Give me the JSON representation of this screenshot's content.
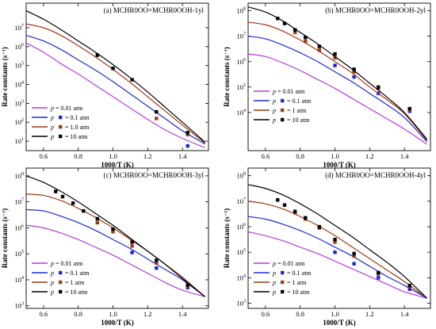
{
  "figure": {
    "colors": {
      "0.01": "#b43ce0",
      "0.1": "#1c28d6",
      "1": "#9e3a14",
      "10": "#000000"
    },
    "xlabel": "1000/T (K)",
    "ylabel": "Rate constants (s⁻¹)"
  },
  "chart_data": [
    {
      "type": "line",
      "panel": "a",
      "title": "(a) MCHR0OO=MCHR0OOH-1yl",
      "xlabel": "1000/T (K)",
      "ylabel": "Rate constants (s⁻¹)",
      "xlim": [
        0.5,
        1.55
      ],
      "ylim_exp": [
        0.5,
        8.3
      ],
      "x_ticks": [
        0.6,
        0.8,
        1.0,
        1.2,
        1.4
      ],
      "y_tick_exps": [
        1,
        2,
        3,
        4,
        5,
        6,
        7
      ],
      "legend_position": "bottom-left",
      "legend": [
        {
          "p": "p",
          "label": " = 0.01 atm",
          "key": "0.01",
          "kind": "line"
        },
        {
          "p": "p",
          "label": " = 0.1 atm",
          "key": "0.1",
          "kind": "line+square"
        },
        {
          "p": "p",
          "label": " = 1.0 atm",
          "key": "1",
          "kind": "line+square"
        },
        {
          "p": "p",
          "label": " = 10 atm",
          "key": "10",
          "kind": "line+square"
        }
      ],
      "series": [
        {
          "key": "0.01",
          "line_x": [
            0.5,
            0.6,
            0.7,
            0.8,
            0.9,
            1.0,
            1.1,
            1.2,
            1.3,
            1.4,
            1.53
          ],
          "line_log10": [
            6.2,
            5.7,
            5.1,
            4.55,
            3.95,
            3.35,
            2.75,
            2.15,
            1.6,
            1.15,
            0.65
          ],
          "points_x": [],
          "points_log10": []
        },
        {
          "key": "0.1",
          "line_x": [
            0.5,
            0.6,
            0.7,
            0.8,
            0.9,
            1.0,
            1.1,
            1.2,
            1.3,
            1.4,
            1.53
          ],
          "line_log10": [
            6.6,
            6.3,
            5.85,
            5.3,
            4.75,
            4.15,
            3.5,
            2.85,
            2.2,
            1.55,
            0.85
          ],
          "points_x": [
            1.43
          ],
          "points_log10": [
            0.75
          ]
        },
        {
          "key": "1",
          "line_x": [
            0.5,
            0.6,
            0.7,
            0.8,
            0.9,
            1.0,
            1.1,
            1.2,
            1.3,
            1.4,
            1.53
          ],
          "line_log10": [
            7.2,
            7.0,
            6.6,
            6.05,
            5.45,
            4.8,
            4.1,
            3.35,
            2.6,
            1.85,
            0.9
          ],
          "points_x": [
            1.25,
            1.43
          ],
          "points_log10": [
            2.2,
            1.35
          ]
        },
        {
          "key": "10",
          "line_x": [
            0.5,
            0.6,
            0.7,
            0.8,
            0.9,
            1.0,
            1.1,
            1.2,
            1.3,
            1.4,
            1.53
          ],
          "line_log10": [
            7.9,
            7.45,
            6.9,
            6.3,
            5.7,
            5.05,
            4.35,
            3.6,
            2.8,
            2.0,
            0.95
          ],
          "points_x": [
            0.91,
            1.0,
            1.11,
            1.25,
            1.43
          ],
          "points_log10": [
            5.55,
            4.85,
            4.25,
            2.55,
            1.45
          ]
        }
      ]
    },
    {
      "type": "line",
      "panel": "b",
      "title": "(b) MCHR0OO=MCHR0OOH-2yl",
      "xlabel": "1000/T (K)",
      "ylabel": "Rate constants (s⁻¹)",
      "xlim": [
        0.5,
        1.55
      ],
      "ylim_exp": [
        2.5,
        8.3
      ],
      "x_ticks": [
        0.6,
        0.8,
        1.0,
        1.2,
        1.4
      ],
      "y_tick_exps": [
        4,
        5,
        6,
        7,
        8
      ],
      "legend_position": "bottom-left",
      "legend": [
        {
          "p": "p",
          "label": " = 0.01 atm",
          "key": "0.01",
          "kind": "line"
        },
        {
          "p": "p",
          "label": " = 0.1 atm",
          "key": "0.1",
          "kind": "line+square"
        },
        {
          "p": "p",
          "label": " = 1 atm",
          "key": "1",
          "kind": "line+square"
        },
        {
          "p": "p",
          "label": " = 10 atm",
          "key": "10",
          "kind": "line+square"
        }
      ],
      "series": [
        {
          "key": "0.01",
          "line_x": [
            0.5,
            0.6,
            0.7,
            0.8,
            0.9,
            1.0,
            1.1,
            1.2,
            1.3,
            1.4,
            1.53
          ],
          "line_log10": [
            6.3,
            6.2,
            5.95,
            5.65,
            5.3,
            4.95,
            4.55,
            4.15,
            3.75,
            3.35,
            2.75
          ],
          "points_x": [],
          "points_log10": []
        },
        {
          "key": "0.1",
          "line_x": [
            0.5,
            0.6,
            0.7,
            0.8,
            0.9,
            1.0,
            1.1,
            1.2,
            1.3,
            1.4,
            1.53
          ],
          "line_log10": [
            7.0,
            6.9,
            6.65,
            6.35,
            6.0,
            5.6,
            5.2,
            4.75,
            4.3,
            3.8,
            2.85
          ],
          "points_x": [
            1.0,
            1.11,
            1.25,
            1.43
          ],
          "points_log10": [
            5.85,
            5.4,
            4.75,
            4.05
          ]
        },
        {
          "key": "1",
          "line_x": [
            0.5,
            0.6,
            0.7,
            0.8,
            0.9,
            1.0,
            1.1,
            1.2,
            1.3,
            1.4,
            1.53
          ],
          "line_log10": [
            7.55,
            7.45,
            7.2,
            6.85,
            6.45,
            6.0,
            5.55,
            5.0,
            4.5,
            3.95,
            2.9
          ],
          "points_x": [
            0.77,
            0.83,
            0.91,
            1.0,
            1.11,
            1.25,
            1.43
          ],
          "points_log10": [
            7.15,
            6.8,
            6.45,
            6.15,
            5.6,
            4.95,
            4.1
          ]
        },
        {
          "key": "10",
          "line_x": [
            0.5,
            0.6,
            0.7,
            0.8,
            0.9,
            1.0,
            1.1,
            1.2,
            1.3,
            1.4,
            1.53
          ],
          "line_log10": [
            8.15,
            7.95,
            7.6,
            7.15,
            6.7,
            6.2,
            5.7,
            5.15,
            4.6,
            4.0,
            2.95
          ],
          "points_x": [
            0.67,
            0.71,
            0.77,
            0.83,
            0.91,
            1.0,
            1.11,
            1.25,
            1.43
          ],
          "points_log10": [
            7.7,
            7.5,
            7.25,
            6.95,
            6.6,
            6.3,
            5.7,
            5.0,
            4.15
          ]
        }
      ]
    },
    {
      "type": "line",
      "panel": "c",
      "title": "(c) MCHR0OO=MCHR0OOH-3yl",
      "xlabel": "1000/T (K)",
      "ylabel": "Rate constants (s⁻¹)",
      "xlim": [
        0.5,
        1.55
      ],
      "ylim_exp": [
        2.9,
        8.3
      ],
      "x_ticks": [
        0.6,
        0.8,
        1.0,
        1.2,
        1.4
      ],
      "y_tick_exps": [
        3,
        4,
        5,
        6,
        7,
        8
      ],
      "legend_position": "bottom-left",
      "legend": [
        {
          "p": "p",
          "label": " = 0.01 atm",
          "key": "0.01",
          "kind": "line"
        },
        {
          "p": "p",
          "label": " = 0.1 atm",
          "key": "0.1",
          "kind": "line+square"
        },
        {
          "p": "p",
          "label": " = 1 atm",
          "key": "1",
          "kind": "line+square"
        },
        {
          "p": "p",
          "label": " = 10 atm",
          "key": "10",
          "kind": "line+square"
        }
      ],
      "series": [
        {
          "key": "0.01",
          "line_x": [
            0.5,
            0.6,
            0.7,
            0.8,
            0.9,
            1.0,
            1.1,
            1.2,
            1.3,
            1.4,
            1.53
          ],
          "line_log10": [
            6.1,
            6.0,
            5.8,
            5.55,
            5.25,
            4.95,
            4.6,
            4.25,
            3.9,
            3.6,
            3.35
          ],
          "points_x": [],
          "points_log10": []
        },
        {
          "key": "0.1",
          "line_x": [
            0.5,
            0.6,
            0.7,
            0.8,
            0.9,
            1.0,
            1.1,
            1.2,
            1.3,
            1.4,
            1.53
          ],
          "line_log10": [
            6.7,
            6.65,
            6.45,
            6.2,
            5.9,
            5.55,
            5.2,
            4.8,
            4.4,
            4.0,
            3.35
          ],
          "points_x": [
            1.11,
            1.25,
            1.43
          ],
          "points_log10": [
            5.05,
            4.45,
            3.7
          ]
        },
        {
          "key": "1",
          "line_x": [
            0.5,
            0.6,
            0.7,
            0.8,
            0.9,
            1.0,
            1.1,
            1.2,
            1.3,
            1.4,
            1.53
          ],
          "line_log10": [
            7.3,
            7.25,
            7.05,
            6.75,
            6.4,
            6.0,
            5.55,
            5.1,
            4.6,
            4.1,
            3.35
          ],
          "points_x": [
            0.91,
            1.0,
            1.11,
            1.25,
            1.43
          ],
          "points_log10": [
            6.2,
            5.85,
            5.3,
            4.65,
            3.75
          ]
        },
        {
          "key": "10",
          "line_x": [
            0.5,
            0.6,
            0.7,
            0.8,
            0.9,
            1.0,
            1.1,
            1.2,
            1.3,
            1.4,
            1.53
          ],
          "line_log10": [
            8.0,
            7.75,
            7.4,
            7.0,
            6.55,
            6.1,
            5.6,
            5.1,
            4.6,
            4.05,
            3.35
          ],
          "points_x": [
            0.67,
            0.71,
            0.77,
            0.83,
            0.91,
            1.0,
            1.11,
            1.25,
            1.43
          ],
          "points_log10": [
            7.4,
            7.2,
            6.95,
            6.65,
            6.35,
            5.95,
            5.45,
            4.75,
            3.8
          ]
        }
      ]
    },
    {
      "type": "line",
      "panel": "d",
      "title": "(d) MCHR0OO=MCHR0OOH-4yl",
      "xlabel": "1000/T (K)",
      "ylabel": "Rate constants (s⁻¹)",
      "xlim": [
        0.5,
        1.55
      ],
      "ylim_exp": [
        2.8,
        8.3
      ],
      "x_ticks": [
        0.6,
        0.8,
        1.0,
        1.2,
        1.4
      ],
      "y_tick_exps": [
        3,
        4,
        5,
        6,
        7,
        8
      ],
      "legend_position": "bottom-left",
      "legend": [
        {
          "p": "p",
          "label": " = 0.01 atm",
          "key": "0.01",
          "kind": "line"
        },
        {
          "p": "p",
          "label": " = 0.1 atm",
          "key": "0.1",
          "kind": "line+square"
        },
        {
          "p": "p",
          "label": " = 1 atm",
          "key": "1",
          "kind": "line+square"
        },
        {
          "p": "p",
          "label": " = 10 atm",
          "key": "10",
          "kind": "line+square"
        }
      ],
      "series": [
        {
          "key": "0.01",
          "line_x": [
            0.5,
            0.6,
            0.7,
            0.8,
            0.9,
            1.0,
            1.1,
            1.2,
            1.3,
            1.4,
            1.53
          ],
          "line_log10": [
            5.8,
            5.65,
            5.45,
            5.2,
            4.95,
            4.65,
            4.35,
            4.05,
            3.75,
            3.45,
            3.2
          ],
          "points_x": [],
          "points_log10": []
        },
        {
          "key": "0.1",
          "line_x": [
            0.5,
            0.6,
            0.7,
            0.8,
            0.9,
            1.0,
            1.1,
            1.2,
            1.3,
            1.4,
            1.53
          ],
          "line_log10": [
            6.4,
            6.3,
            6.1,
            5.85,
            5.55,
            5.2,
            4.85,
            4.45,
            4.05,
            3.7,
            3.2
          ],
          "points_x": [
            1.0,
            1.11,
            1.25,
            1.43
          ],
          "points_log10": [
            5.0,
            4.55,
            4.0,
            3.55
          ]
        },
        {
          "key": "1",
          "line_x": [
            0.5,
            0.6,
            0.7,
            0.8,
            0.9,
            1.0,
            1.1,
            1.2,
            1.3,
            1.4,
            1.53
          ],
          "line_log10": [
            7.0,
            6.9,
            6.7,
            6.4,
            6.05,
            5.65,
            5.2,
            4.75,
            4.3,
            3.85,
            3.2
          ],
          "points_x": [
            0.77,
            0.83,
            0.91,
            1.0,
            1.11,
            1.25,
            1.43
          ],
          "points_log10": [
            6.55,
            6.3,
            5.95,
            5.4,
            4.85,
            4.15,
            3.65
          ]
        },
        {
          "key": "10",
          "line_x": [
            0.5,
            0.6,
            0.7,
            0.8,
            0.9,
            1.0,
            1.1,
            1.2,
            1.3,
            1.4,
            1.53
          ],
          "line_log10": [
            7.65,
            7.5,
            7.25,
            6.9,
            6.5,
            6.05,
            5.6,
            5.1,
            4.6,
            4.05,
            3.2
          ],
          "points_x": [
            0.67,
            0.71,
            0.77,
            0.83,
            0.91,
            1.0,
            1.11,
            1.25,
            1.43
          ],
          "points_log10": [
            7.05,
            6.85,
            6.6,
            6.35,
            6.0,
            5.5,
            4.95,
            4.2,
            3.7
          ]
        }
      ]
    }
  ]
}
